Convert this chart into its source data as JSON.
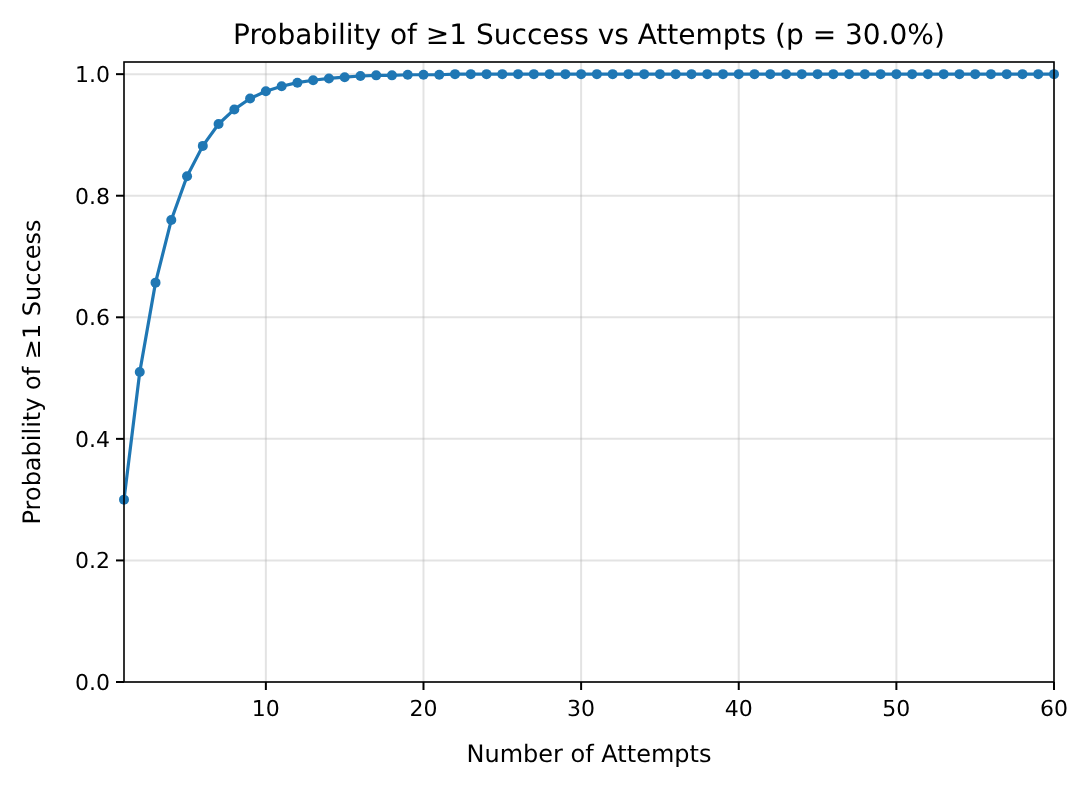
{
  "chart_data": {
    "type": "line",
    "title": "Probability of ≥1 Success vs Attempts (p = 30.0%)",
    "xlabel": "Number of Attempts",
    "ylabel": "Probability of ≥1 Success",
    "x": [
      1,
      2,
      3,
      4,
      5,
      6,
      7,
      8,
      9,
      10,
      11,
      12,
      13,
      14,
      15,
      16,
      17,
      18,
      19,
      20,
      21,
      22,
      23,
      24,
      25,
      26,
      27,
      28,
      29,
      30,
      31,
      32,
      33,
      34,
      35,
      36,
      37,
      38,
      39,
      40,
      41,
      42,
      43,
      44,
      45,
      46,
      47,
      48,
      49,
      50,
      51,
      52,
      53,
      54,
      55,
      56,
      57,
      58,
      59,
      60
    ],
    "series": [
      {
        "color": "#1f77b4",
        "values": [
          0.3,
          0.51,
          0.657,
          0.76,
          0.832,
          0.882,
          0.918,
          0.942,
          0.96,
          0.972,
          0.98,
          0.986,
          0.99,
          0.993,
          0.995,
          0.997,
          0.998,
          0.998,
          0.999,
          0.999,
          0.999,
          1,
          1,
          1,
          1,
          1,
          1,
          1,
          1,
          1,
          1,
          1,
          1,
          1,
          1,
          1,
          1,
          1,
          1,
          1,
          1,
          1,
          1,
          1,
          1,
          1,
          1,
          1,
          1,
          1,
          1,
          1,
          1,
          1,
          1,
          1,
          1,
          1,
          1,
          1
        ]
      }
    ],
    "xlim": [
      1,
      60
    ],
    "ylim": [
      0,
      1.02
    ],
    "xticks": [
      10,
      20,
      30,
      40,
      50,
      60
    ],
    "yticks": [
      {
        "value": 0,
        "label": "0.0"
      },
      {
        "value": 0.2,
        "label": "0.2"
      },
      {
        "value": 0.4,
        "label": "0.4"
      },
      {
        "value": 0.6,
        "label": "0.6"
      },
      {
        "value": 0.8,
        "label": "0.8"
      },
      {
        "value": 1,
        "label": "1.0"
      }
    ],
    "grid": true,
    "marker": "circle",
    "line_style": "solid"
  }
}
